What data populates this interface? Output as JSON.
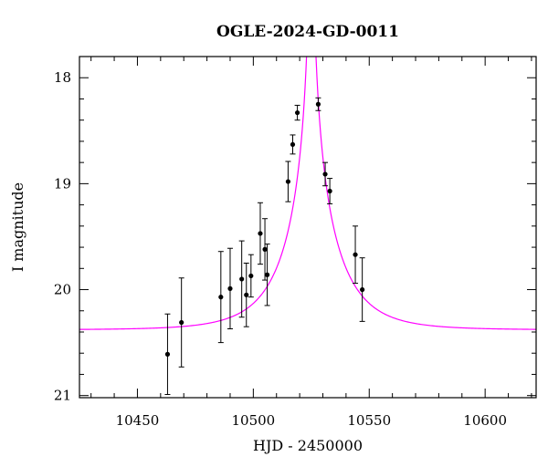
{
  "chart_data": {
    "type": "scatter",
    "title": "OGLE-2024-GD-0011",
    "xlabel": "HJD - 2450000",
    "ylabel": "I magnitude",
    "xlim": [
      10425,
      10622
    ],
    "ylim": [
      21.02,
      17.8
    ],
    "y_inverted": true,
    "grid": false,
    "x_ticks": [
      10450,
      10500,
      10550,
      10600
    ],
    "y_ticks": [
      18,
      19,
      20,
      21
    ],
    "x_tick_labels": [
      "10450",
      "10500",
      "10550",
      "10600"
    ],
    "y_tick_labels": [
      "18",
      "19",
      "20",
      "21"
    ],
    "model_color": "#ff00ff",
    "point_color": "#000000",
    "model": {
      "t0": 10525,
      "baseline_mag": 20.38,
      "u0": 0.01,
      "tE": 22
    },
    "points": [
      {
        "x": 10463,
        "y": 20.61,
        "err": 0.38
      },
      {
        "x": 10469,
        "y": 20.31,
        "err": 0.42
      },
      {
        "x": 10486,
        "y": 20.07,
        "err": 0.43
      },
      {
        "x": 10490,
        "y": 19.99,
        "err": 0.38
      },
      {
        "x": 10495,
        "y": 19.9,
        "err": 0.36
      },
      {
        "x": 10497,
        "y": 20.05,
        "err": 0.3
      },
      {
        "x": 10499,
        "y": 19.87,
        "err": 0.2
      },
      {
        "x": 10503,
        "y": 19.47,
        "err": 0.29
      },
      {
        "x": 10505,
        "y": 19.62,
        "err": 0.29
      },
      {
        "x": 10506,
        "y": 19.86,
        "err": 0.29
      },
      {
        "x": 10515,
        "y": 18.98,
        "err": 0.19
      },
      {
        "x": 10517,
        "y": 18.63,
        "err": 0.09
      },
      {
        "x": 10519,
        "y": 18.33,
        "err": 0.07
      },
      {
        "x": 10528,
        "y": 18.25,
        "err": 0.06
      },
      {
        "x": 10531,
        "y": 18.91,
        "err": 0.11
      },
      {
        "x": 10533,
        "y": 19.07,
        "err": 0.12
      },
      {
        "x": 10544,
        "y": 19.67,
        "err": 0.27
      },
      {
        "x": 10547,
        "y": 20.0,
        "err": 0.3
      }
    ]
  }
}
